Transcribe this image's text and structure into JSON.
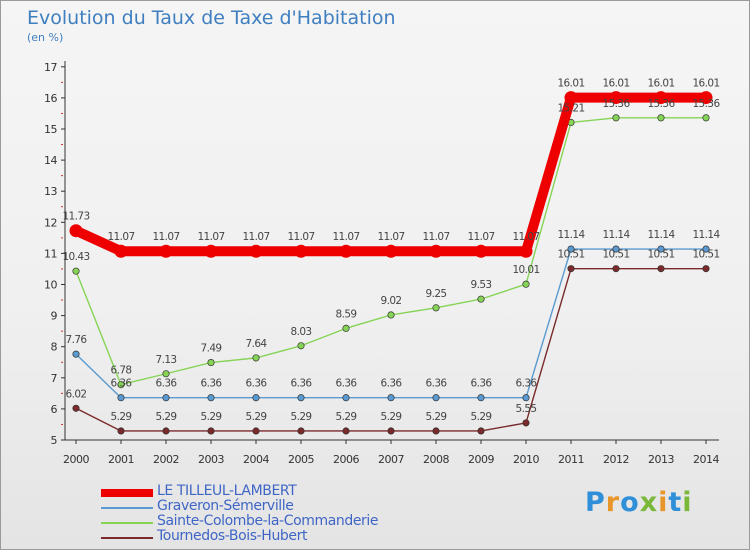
{
  "title": "Evolution du Taux de Taxe d'Habitation",
  "subtitle": "(en %)",
  "logo": {
    "text": "Proxiti",
    "colors": [
      "#2f8fd8",
      "#e8952a",
      "#2f8fd8",
      "#7ab83a",
      "#e8952a",
      "#2f8fd8",
      "#7ab83a"
    ]
  },
  "chart_data": {
    "type": "line",
    "x": [
      "2000",
      "2001",
      "2002",
      "2003",
      "2004",
      "2005",
      "2006",
      "2007",
      "2008",
      "2009",
      "2010",
      "2011",
      "2012",
      "2013",
      "2014"
    ],
    "ylim": [
      5,
      17
    ],
    "yticks": [
      "5",
      "6",
      "7",
      "8",
      "9",
      "10",
      "11",
      "12",
      "13",
      "14",
      "15",
      "16",
      "17"
    ],
    "grid": "none",
    "legend_position": "bottom-left",
    "series": [
      {
        "name": "LE TILLEUL-LAMBERT",
        "color": "#ee0000",
        "values": [
          11.73,
          11.07,
          11.07,
          11.07,
          11.07,
          11.07,
          11.07,
          11.07,
          11.07,
          11.07,
          11.07,
          16.01,
          16.01,
          16.01,
          16.01
        ],
        "labels": [
          "11.73",
          "11.07",
          "11.07",
          "11.07",
          "11.07",
          "11.07",
          "11.07",
          "11.07",
          "11.07",
          "11.07",
          "11.07",
          "16.01",
          "16.01",
          "16.01",
          "16.01"
        ]
      },
      {
        "name": "Graveron-Sémerville",
        "color": "#5a9ad0",
        "values": [
          7.76,
          6.36,
          6.36,
          6.36,
          6.36,
          6.36,
          6.36,
          6.36,
          6.36,
          6.36,
          6.36,
          11.14,
          11.14,
          11.14,
          11.14
        ],
        "labels": [
          "7.76",
          "6.36",
          "6.36",
          "6.36",
          "6.36",
          "6.36",
          "6.36",
          "6.36",
          "6.36",
          "6.36",
          "6.36",
          "11.14",
          "11.14",
          "11.14",
          "11.14"
        ]
      },
      {
        "name": "Sainte-Colombe-la-Commanderie",
        "color": "#86d456",
        "values": [
          10.43,
          6.78,
          7.13,
          7.49,
          7.64,
          8.03,
          8.59,
          9.02,
          9.25,
          9.53,
          10.01,
          15.21,
          15.36,
          15.36,
          15.36
        ],
        "labels": [
          "10.43",
          "6.78",
          "7.13",
          "7.49",
          "7.64",
          "8.03",
          "8.59",
          "9.02",
          "9.25",
          "9.53",
          "10.01",
          "15.21",
          "15.36",
          "15.36",
          "15.36"
        ]
      },
      {
        "name": "Tournedos-Bois-Hubert",
        "color": "#7a2a2a",
        "values": [
          6.02,
          5.29,
          5.29,
          5.29,
          5.29,
          5.29,
          5.29,
          5.29,
          5.29,
          5.29,
          5.55,
          10.51,
          10.51,
          10.51,
          10.51
        ],
        "labels": [
          "6.02",
          "5.29",
          "5.29",
          "5.29",
          "5.29",
          "5.29",
          "5.29",
          "5.29",
          "5.29",
          "5.29",
          "5.55",
          "10.51",
          "10.51",
          "10.51",
          "10.51"
        ]
      }
    ]
  }
}
